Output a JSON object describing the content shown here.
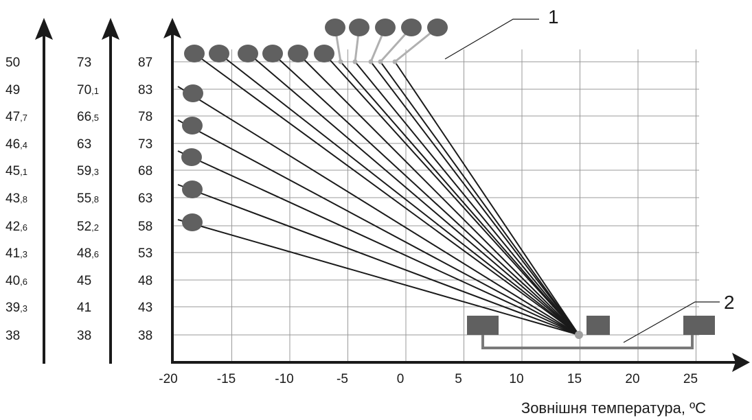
{
  "scale_1": [
    {
      "main": "50",
      "sub": ""
    },
    {
      "main": "49",
      "sub": ""
    },
    {
      "main": "47",
      "sub": ",7"
    },
    {
      "main": "46",
      "sub": ",4"
    },
    {
      "main": "45",
      "sub": ",1"
    },
    {
      "main": "43",
      "sub": ",8"
    },
    {
      "main": "42",
      "sub": ",6"
    },
    {
      "main": "41",
      "sub": ",3"
    },
    {
      "main": "40",
      "sub": ",6"
    },
    {
      "main": "39",
      "sub": ",3"
    },
    {
      "main": "38",
      "sub": ""
    }
  ],
  "scale_2": [
    {
      "main": "73",
      "sub": ""
    },
    {
      "main": "70",
      "sub": ",1"
    },
    {
      "main": "66",
      "sub": ",5"
    },
    {
      "main": "63",
      "sub": ""
    },
    {
      "main": "59",
      "sub": ",3"
    },
    {
      "main": "55",
      "sub": ",8"
    },
    {
      "main": "52",
      "sub": ",2"
    },
    {
      "main": "48",
      "sub": ",6"
    },
    {
      "main": "45",
      "sub": ""
    },
    {
      "main": "41",
      "sub": ""
    },
    {
      "main": "38",
      "sub": ""
    }
  ],
  "scale_3": [
    "87",
    "83",
    "78",
    "73",
    "68",
    "63",
    "58",
    "53",
    "48",
    "43",
    "38"
  ],
  "x_ticks": [
    "-20",
    "-15",
    "-10",
    "-5",
    "0",
    "5",
    "10",
    "15",
    "20",
    "25"
  ],
  "x_axis_title": "Зовнішня температура, ºС",
  "callout_1": "1",
  "callout_2": "2",
  "colors": {
    "line": "#1a1a1a",
    "knob": "#606060",
    "grid": "#999999",
    "leader": "#b0b0b0",
    "bracket": "#7a7a7a"
  }
}
